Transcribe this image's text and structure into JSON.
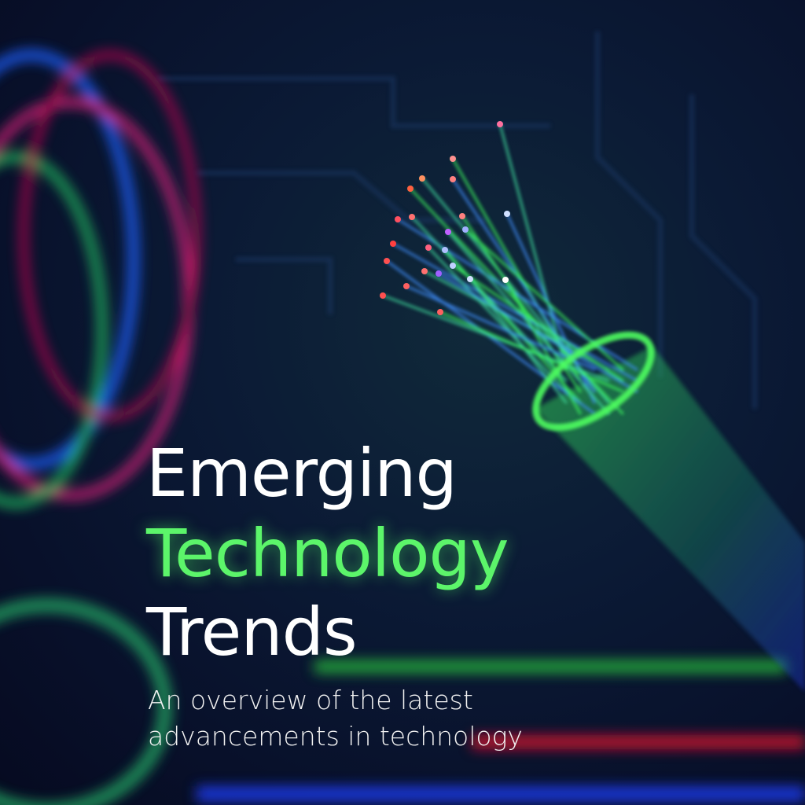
{
  "title": {
    "line1": "Emerging",
    "line2": "Technology",
    "line3": "Trends"
  },
  "subtitle": {
    "line1": "An overview of the latest",
    "line2": "advancements in technology"
  },
  "colors": {
    "accent": "#5cf56a",
    "background": "#08102a",
    "text": "#ffffff"
  },
  "illustration": "fiber-optic-cable"
}
